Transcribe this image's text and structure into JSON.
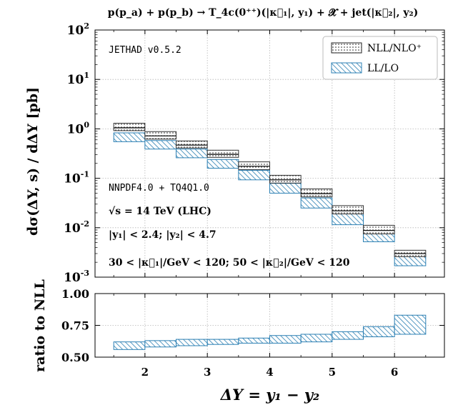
{
  "chart_data": {
    "type": "bar",
    "title": "p(p_a) + p(p_b) → T_4c(0⁺⁺)(|κ⃗₁|, y₁) + 𝓧 + jet(|κ⃗₂|, y₂)",
    "xlabel": "ΔY = y₁ − y₂",
    "ylabel": "dσ(ΔY, s) / dΔY  [pb]",
    "ratio_ylabel": "ratio to NLL",
    "xlim": [
      1.2,
      6.8
    ],
    "ylim": [
      0.001,
      100
    ],
    "ratio_ylim": [
      0.5,
      1.0
    ],
    "bin_edges": [
      1.5,
      2.5,
      3.5,
      4.5,
      5.5,
      6.5
    ],
    "xticks": [
      "2",
      "3",
      "4",
      "5",
      "6"
    ],
    "yticks": [
      "10^-3",
      "10^-2",
      "10^-1",
      "10^0",
      "10^1",
      "10^2"
    ],
    "ratio_yticks": [
      "0.50",
      "0.75",
      "1.00"
    ],
    "series": [
      {
        "name": "NLL/NLO⁺",
        "hatch": "dots",
        "color": "#555555",
        "x": [
          1.5,
          2.0,
          2.5,
          3.0,
          3.5,
          4.0,
          4.5,
          5.0,
          5.5,
          6.0
        ],
        "central": [
          1.05,
          0.72,
          0.47,
          0.305,
          0.175,
          0.093,
          0.049,
          0.022,
          0.0088,
          0.003
        ],
        "low": [
          0.92,
          0.62,
          0.41,
          0.265,
          0.15,
          0.08,
          0.042,
          0.019,
          0.0075,
          0.0026
        ],
        "high": [
          1.3,
          0.88,
          0.57,
          0.37,
          0.215,
          0.115,
          0.061,
          0.028,
          0.0112,
          0.0035
        ]
      },
      {
        "name": "LL/LO",
        "hatch": "diagonal",
        "color": "#2b7fb3",
        "x": [
          1.5,
          2.0,
          2.5,
          3.0,
          3.5,
          4.0,
          4.5,
          5.0,
          5.5,
          6.0
        ],
        "low": [
          0.55,
          0.39,
          0.26,
          0.16,
          0.093,
          0.05,
          0.025,
          0.0115,
          0.0052,
          0.0017
        ],
        "high": [
          0.83,
          0.58,
          0.39,
          0.24,
          0.145,
          0.079,
          0.04,
          0.019,
          0.0086,
          0.0029
        ],
        "ratio_low": [
          0.56,
          0.58,
          0.59,
          0.6,
          0.61,
          0.61,
          0.62,
          0.64,
          0.66,
          0.68
        ],
        "ratio_high": [
          0.62,
          0.63,
          0.64,
          0.64,
          0.65,
          0.67,
          0.68,
          0.7,
          0.74,
          0.83
        ]
      }
    ],
    "annotations": {
      "label_top": "JETHAD v0.5.2",
      "pdf": "NNPDF4.0 + TQ4Q1.0",
      "energy": "√s = 14 TeV (LHC)",
      "rapidity_cuts": "|y₁| < 2.4;   |y₂| < 4.7",
      "kt_cuts": "30 < |κ⃗₁|/GeV < 120;  50 < |κ⃗₂|/GeV < 120"
    },
    "legend_position": "top-right"
  }
}
